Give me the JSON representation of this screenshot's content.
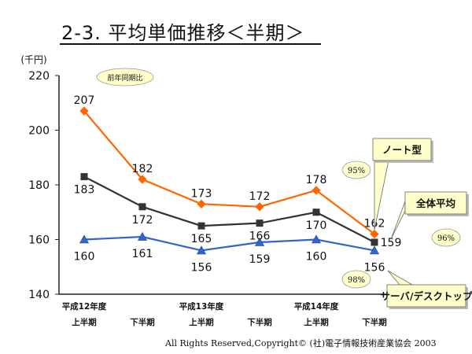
{
  "title": "2-3. 平均単価推移＜半期＞",
  "copyright": "All Rights Reserved,Copyright© (社)電子情報技術産業協会 2003",
  "chart_data": {
    "type": "line",
    "unit_label": "(千円)",
    "x_categories": [
      [
        "平成12年度",
        "上半期"
      ],
      [
        "",
        "下半期"
      ],
      [
        "平成13年度",
        "上半期"
      ],
      [
        "",
        "下半期"
      ],
      [
        "平成14年度",
        "上半期"
      ],
      [
        "",
        "下半期"
      ]
    ],
    "ylim": [
      140,
      220
    ],
    "y_ticks": [
      140,
      160,
      180,
      200,
      220
    ],
    "series": [
      {
        "name": "ノート型",
        "values": [
          207,
          182,
          173,
          172,
          178,
          162
        ],
        "color": "#ff6600",
        "marker": "diamond"
      },
      {
        "name": "全体平均",
        "values": [
          183,
          172,
          165,
          166,
          170,
          159
        ],
        "color": "#333333",
        "marker": "square"
      },
      {
        "name": "サーバ/デスクトップ",
        "values": [
          160,
          161,
          156,
          159,
          160,
          156
        ],
        "color": "#3366cc",
        "marker": "triangle"
      }
    ],
    "annotations": {
      "yoy_label": "前年同期比",
      "percentages": [
        {
          "series": "ノート型",
          "text": "95%"
        },
        {
          "series": "全体平均",
          "text": "96%"
        },
        {
          "series": "サーバ/デスクトップ",
          "text": "98%"
        }
      ]
    },
    "grid": false,
    "legend": "callouts-right"
  }
}
